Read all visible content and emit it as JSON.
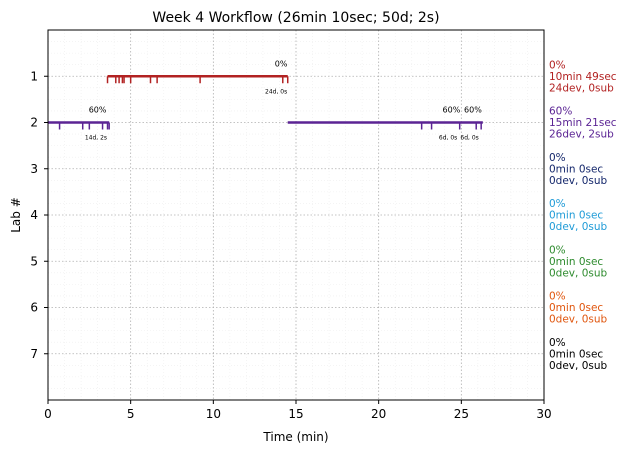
{
  "chart_data": {
    "type": "timeline",
    "title": "Week 4 Workflow (26min 10sec; 50d; 2s)",
    "xlabel": "Time (min)",
    "ylabel": "Lab #",
    "xlim": [
      0,
      30
    ],
    "ylim": [
      0,
      8
    ],
    "y_inverted": true,
    "grid": true,
    "x_ticks": [
      "0",
      "5",
      "10",
      "15",
      "20",
      "25",
      "30"
    ],
    "y_ticks": [
      "1",
      "2",
      "3",
      "4",
      "5",
      "6",
      "7"
    ],
    "series": [
      {
        "lab": 1,
        "color": "#b22222",
        "segments": [
          [
            3.6,
            14.5
          ]
        ],
        "ticks": [
          3.6,
          4.1,
          4.3,
          4.5,
          4.6,
          5.0,
          6.2,
          6.6,
          9.2,
          14.2,
          14.5
        ],
        "annotations": [
          {
            "x": 14.1,
            "pos": "above",
            "text": "0%"
          },
          {
            "x": 13.8,
            "pos": "below",
            "text": "24d, 0s"
          }
        ],
        "side_labels": [
          "0%",
          "10min 49sec",
          "24dev, 0sub"
        ]
      },
      {
        "lab": 2,
        "color": "#5b2494",
        "segments": [
          [
            0,
            3.7
          ],
          [
            14.5,
            26.3
          ]
        ],
        "ticks": [
          0.7,
          2.1,
          2.5,
          3.3,
          3.6,
          3.7,
          22.6,
          23.2,
          24.9,
          25.9,
          26.2
        ],
        "annotations": [
          {
            "x": 3.0,
            "pos": "above",
            "text": "60%"
          },
          {
            "x": 2.9,
            "pos": "below",
            "text": "14d, 2s"
          },
          {
            "x": 24.4,
            "pos": "above",
            "text": "60%"
          },
          {
            "x": 25.7,
            "pos": "above",
            "text": "60%"
          },
          {
            "x": 24.2,
            "pos": "below",
            "text": "6d, 0s"
          },
          {
            "x": 25.5,
            "pos": "below",
            "text": "6d, 0s"
          }
        ],
        "side_labels": [
          "60%",
          "15min 21sec",
          "26dev, 2sub"
        ]
      },
      {
        "lab": 3,
        "color": "#14276b",
        "segments": [],
        "ticks": [],
        "annotations": [],
        "side_labels": [
          "0%",
          "0min 0sec",
          "0dev, 0sub"
        ]
      },
      {
        "lab": 4,
        "color": "#1f9bd7",
        "segments": [],
        "ticks": [],
        "annotations": [],
        "side_labels": [
          "0%",
          "0min 0sec",
          "0dev, 0sub"
        ]
      },
      {
        "lab": 5,
        "color": "#2e8b2e",
        "segments": [],
        "ticks": [],
        "annotations": [],
        "side_labels": [
          "0%",
          "0min 0sec",
          "0dev, 0sub"
        ]
      },
      {
        "lab": 6,
        "color": "#e0560e",
        "segments": [],
        "ticks": [],
        "annotations": [],
        "side_labels": [
          "0%",
          "0min 0sec",
          "0dev, 0sub"
        ]
      },
      {
        "lab": 7,
        "color": "#000000",
        "segments": [],
        "ticks": [],
        "annotations": [],
        "side_labels": [
          "0%",
          "0min 0sec",
          "0dev, 0sub"
        ]
      }
    ]
  }
}
